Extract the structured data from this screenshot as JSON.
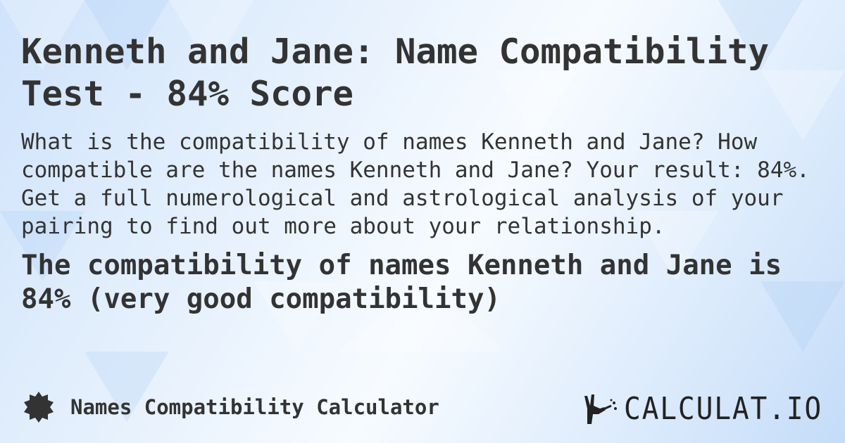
{
  "title": "Kenneth and Jane: Name Compatibility Test - 84% Score",
  "description": "What is the compatibility of names Kenneth and Jane? How compatible are the names Kenneth and Jane? Your result: 84%. Get a full numerological and astrological analysis of your pairing to find out more about your relationship.",
  "result": "The compatibility of names Kenneth and Jane is 84% (very good compatibility)",
  "footer": {
    "icon": "badge-icon",
    "label": "Names Compatibility Calculator"
  },
  "logo": {
    "text": "CALCULAT.IO"
  },
  "colors": {
    "text": "#333333",
    "background": "#dcebfc"
  }
}
